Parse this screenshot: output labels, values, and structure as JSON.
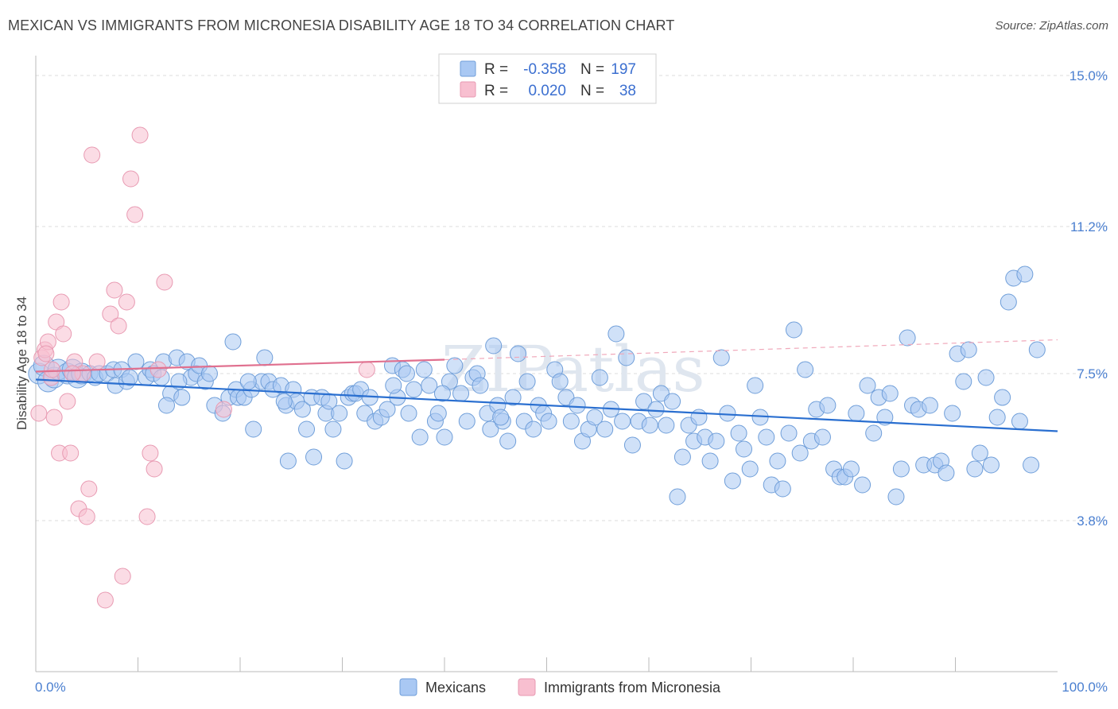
{
  "title": "MEXICAN VS IMMIGRANTS FROM MICRONESIA DISABILITY AGE 18 TO 34 CORRELATION CHART",
  "source": "Source: ZipAtlas.com",
  "watermark": "ZIPatlas",
  "chart_data": {
    "type": "scatter",
    "title": "MEXICAN VS IMMIGRANTS FROM MICRONESIA DISABILITY AGE 18 TO 34 CORRELATION CHART",
    "ylabel": "Disability Age 18 to 34",
    "xlim": [
      0,
      100
    ],
    "ylim": [
      0.0,
      15.5
    ],
    "x_tick_labels": [
      "0.0%",
      "100.0%"
    ],
    "y_ticks": [
      3.8,
      7.5,
      11.2,
      15.0
    ],
    "y_tick_labels": [
      "3.8%",
      "7.5%",
      "11.2%",
      "15.0%"
    ],
    "grid": true,
    "legend_top": [
      {
        "r_label": "R =",
        "r_value": "-0.358",
        "n_label": "N =",
        "n_value": "197",
        "color": "#a9c8f3"
      },
      {
        "r_label": "R =",
        "r_value": "0.020",
        "n_label": "N =",
        "n_value": "38",
        "color": "#f8bfd0"
      }
    ],
    "series": [
      {
        "name": "Mexicans",
        "color": "#a9c8f3",
        "stroke": "#6f9ed9",
        "trend": {
          "x": [
            0,
            100
          ],
          "y": [
            7.35,
            6.05
          ],
          "color": "#2a6fd0"
        },
        "points": [
          [
            0.3,
            7.5
          ],
          [
            0.8,
            7.7
          ],
          [
            1.2,
            7.3
          ],
          [
            1.8,
            7.4
          ],
          [
            2.2,
            7.6
          ],
          [
            3.1,
            7.5
          ],
          [
            3.6,
            7.6
          ],
          [
            4.1,
            7.4
          ],
          [
            4.5,
            7.5
          ],
          [
            5.3,
            7.5
          ],
          [
            5.8,
            7.4
          ],
          [
            6.2,
            7.5
          ],
          [
            7.0,
            7.5
          ],
          [
            7.6,
            7.6
          ],
          [
            7.8,
            7.2
          ],
          [
            8.4,
            7.6
          ],
          [
            8.9,
            7.3
          ],
          [
            9.2,
            7.4
          ],
          [
            9.8,
            7.8
          ],
          [
            10.8,
            7.4
          ],
          [
            11.2,
            7.6
          ],
          [
            11.5,
            7.5
          ],
          [
            12.3,
            7.4
          ],
          [
            12.5,
            7.8
          ],
          [
            13.2,
            7.0
          ],
          [
            12.8,
            6.7
          ],
          [
            13.8,
            7.9
          ],
          [
            14.3,
            6.9
          ],
          [
            14.8,
            7.8
          ],
          [
            15.2,
            7.4
          ],
          [
            15.7,
            7.5
          ],
          [
            16.0,
            7.7
          ],
          [
            16.6,
            7.3
          ],
          [
            17.0,
            7.5
          ],
          [
            17.5,
            6.7
          ],
          [
            18.3,
            6.5
          ],
          [
            18.9,
            6.9
          ],
          [
            19.3,
            8.3
          ],
          [
            19.6,
            7.1
          ],
          [
            19.8,
            6.9
          ],
          [
            20.4,
            6.9
          ],
          [
            21.1,
            7.1
          ],
          [
            21.3,
            6.1
          ],
          [
            22.1,
            7.3
          ],
          [
            22.8,
            7.3
          ],
          [
            22.4,
            7.9
          ],
          [
            23.2,
            7.1
          ],
          [
            24.0,
            7.2
          ],
          [
            24.5,
            6.7
          ],
          [
            24.7,
            5.3
          ],
          [
            25.2,
            7.1
          ],
          [
            25.5,
            6.8
          ],
          [
            26.1,
            6.6
          ],
          [
            26.5,
            6.1
          ],
          [
            27.2,
            5.4
          ],
          [
            27.0,
            6.9
          ],
          [
            28.0,
            6.9
          ],
          [
            28.4,
            6.5
          ],
          [
            28.7,
            6.8
          ],
          [
            29.1,
            6.1
          ],
          [
            29.7,
            6.5
          ],
          [
            30.2,
            5.3
          ],
          [
            30.6,
            6.9
          ],
          [
            31.0,
            7.0
          ],
          [
            31.3,
            7.0
          ],
          [
            31.8,
            7.1
          ],
          [
            32.2,
            6.5
          ],
          [
            32.7,
            6.9
          ],
          [
            33.2,
            6.3
          ],
          [
            33.8,
            6.4
          ],
          [
            34.4,
            6.6
          ],
          [
            34.9,
            7.7
          ],
          [
            35.4,
            6.9
          ],
          [
            35.9,
            7.6
          ],
          [
            36.3,
            7.5
          ],
          [
            36.5,
            6.5
          ],
          [
            37.0,
            7.1
          ],
          [
            37.6,
            5.9
          ],
          [
            38.0,
            7.6
          ],
          [
            38.5,
            7.2
          ],
          [
            39.1,
            6.3
          ],
          [
            39.4,
            6.5
          ],
          [
            40.0,
            5.9
          ],
          [
            40.5,
            7.3
          ],
          [
            41.0,
            7.7
          ],
          [
            41.6,
            7.0
          ],
          [
            42.2,
            6.3
          ],
          [
            42.8,
            7.4
          ],
          [
            43.2,
            7.5
          ],
          [
            43.5,
            7.2
          ],
          [
            44.2,
            6.5
          ],
          [
            44.5,
            6.1
          ],
          [
            44.8,
            8.2
          ],
          [
            45.2,
            6.7
          ],
          [
            45.7,
            6.3
          ],
          [
            46.2,
            5.8
          ],
          [
            46.7,
            6.9
          ],
          [
            47.2,
            8.0
          ],
          [
            47.8,
            6.3
          ],
          [
            48.1,
            7.3
          ],
          [
            48.7,
            6.1
          ],
          [
            49.2,
            6.7
          ],
          [
            49.7,
            6.5
          ],
          [
            50.2,
            6.3
          ],
          [
            50.8,
            7.6
          ],
          [
            51.3,
            7.3
          ],
          [
            51.9,
            6.9
          ],
          [
            52.4,
            6.3
          ],
          [
            53.0,
            6.7
          ],
          [
            53.5,
            5.8
          ],
          [
            54.1,
            6.1
          ],
          [
            54.7,
            6.4
          ],
          [
            55.2,
            7.4
          ],
          [
            55.7,
            6.1
          ],
          [
            56.3,
            6.6
          ],
          [
            56.8,
            8.5
          ],
          [
            57.4,
            6.3
          ],
          [
            57.8,
            7.9
          ],
          [
            58.4,
            5.7
          ],
          [
            59.0,
            6.3
          ],
          [
            59.5,
            6.8
          ],
          [
            60.1,
            6.2
          ],
          [
            60.7,
            6.6
          ],
          [
            61.2,
            7.0
          ],
          [
            61.7,
            6.2
          ],
          [
            62.3,
            6.8
          ],
          [
            62.8,
            4.4
          ],
          [
            63.3,
            5.4
          ],
          [
            63.9,
            6.2
          ],
          [
            64.4,
            5.8
          ],
          [
            64.9,
            6.4
          ],
          [
            65.5,
            5.9
          ],
          [
            66.0,
            5.3
          ],
          [
            66.6,
            5.8
          ],
          [
            67.1,
            7.9
          ],
          [
            67.7,
            6.5
          ],
          [
            68.2,
            4.8
          ],
          [
            68.8,
            6.0
          ],
          [
            69.3,
            5.6
          ],
          [
            69.9,
            5.1
          ],
          [
            70.4,
            7.2
          ],
          [
            70.9,
            6.4
          ],
          [
            71.5,
            5.9
          ],
          [
            72.0,
            4.7
          ],
          [
            72.6,
            5.3
          ],
          [
            73.1,
            4.6
          ],
          [
            73.7,
            6.0
          ],
          [
            74.2,
            8.6
          ],
          [
            74.8,
            5.5
          ],
          [
            75.3,
            7.6
          ],
          [
            75.9,
            5.8
          ],
          [
            76.4,
            6.6
          ],
          [
            77.0,
            5.9
          ],
          [
            77.5,
            6.7
          ],
          [
            78.1,
            5.1
          ],
          [
            78.7,
            4.9
          ],
          [
            79.2,
            4.9
          ],
          [
            79.8,
            5.1
          ],
          [
            80.3,
            6.5
          ],
          [
            80.9,
            4.7
          ],
          [
            81.4,
            7.2
          ],
          [
            82.0,
            6.0
          ],
          [
            82.5,
            6.9
          ],
          [
            83.1,
            6.4
          ],
          [
            83.6,
            7.0
          ],
          [
            84.2,
            4.4
          ],
          [
            84.7,
            5.1
          ],
          [
            85.3,
            8.4
          ],
          [
            85.8,
            6.7
          ],
          [
            86.4,
            6.6
          ],
          [
            86.9,
            5.2
          ],
          [
            87.5,
            6.7
          ],
          [
            88.0,
            5.2
          ],
          [
            88.6,
            5.3
          ],
          [
            89.1,
            5.0
          ],
          [
            89.7,
            6.5
          ],
          [
            90.2,
            8.0
          ],
          [
            90.8,
            7.3
          ],
          [
            91.3,
            8.1
          ],
          [
            91.9,
            5.1
          ],
          [
            92.4,
            5.5
          ],
          [
            93.0,
            7.4
          ],
          [
            93.5,
            5.2
          ],
          [
            94.1,
            6.4
          ],
          [
            94.6,
            6.9
          ],
          [
            95.2,
            9.3
          ],
          [
            95.7,
            9.9
          ],
          [
            96.3,
            6.3
          ],
          [
            96.8,
            10.0
          ],
          [
            97.4,
            5.2
          ],
          [
            98.0,
            8.1
          ],
          [
            14.0,
            7.3
          ],
          [
            20.8,
            7.3
          ],
          [
            24.3,
            6.8
          ],
          [
            35.0,
            7.2
          ],
          [
            39.8,
            7.0
          ],
          [
            45.5,
            6.4
          ]
        ]
      },
      {
        "name": "Immigrants from Micronesia",
        "color": "#f8bfd0",
        "stroke": "#e89ab2",
        "trend_solid": {
          "x": [
            0,
            40
          ],
          "y": [
            7.55,
            7.85
          ],
          "color": "#e0708f"
        },
        "trend_dashed": {
          "x": [
            40,
            100
          ],
          "y": [
            7.85,
            8.35
          ],
          "color": "#f0a8ba"
        },
        "points": [
          [
            0.3,
            6.5
          ],
          [
            0.6,
            7.9
          ],
          [
            0.9,
            8.1
          ],
          [
            1.2,
            8.3
          ],
          [
            1.5,
            7.4
          ],
          [
            1.8,
            6.4
          ],
          [
            2.0,
            8.8
          ],
          [
            2.3,
            5.5
          ],
          [
            2.7,
            8.5
          ],
          [
            3.1,
            6.8
          ],
          [
            3.4,
            5.5
          ],
          [
            3.8,
            7.8
          ],
          [
            4.2,
            4.1
          ],
          [
            4.6,
            7.5
          ],
          [
            5.0,
            3.9
          ],
          [
            5.5,
            13.0
          ],
          [
            5.2,
            4.6
          ],
          [
            6.0,
            7.8
          ],
          [
            6.8,
            1.8
          ],
          [
            7.3,
            9.0
          ],
          [
            7.7,
            9.6
          ],
          [
            8.1,
            8.7
          ],
          [
            8.5,
            2.4
          ],
          [
            8.9,
            9.3
          ],
          [
            9.3,
            12.4
          ],
          [
            9.7,
            11.5
          ],
          [
            10.2,
            13.5
          ],
          [
            10.9,
            3.9
          ],
          [
            11.2,
            5.5
          ],
          [
            11.6,
            5.1
          ],
          [
            12.0,
            7.6
          ],
          [
            12.6,
            9.8
          ],
          [
            1.0,
            8.0
          ],
          [
            1.6,
            7.6
          ],
          [
            2.5,
            9.3
          ],
          [
            3.6,
            7.5
          ],
          [
            18.4,
            6.6
          ],
          [
            32.4,
            7.6
          ]
        ]
      }
    ],
    "legend_bottom": [
      {
        "label": "Mexicans",
        "color": "#a9c8f3"
      },
      {
        "label": "Immigrants from Micronesia",
        "color": "#f8bfd0"
      }
    ]
  }
}
